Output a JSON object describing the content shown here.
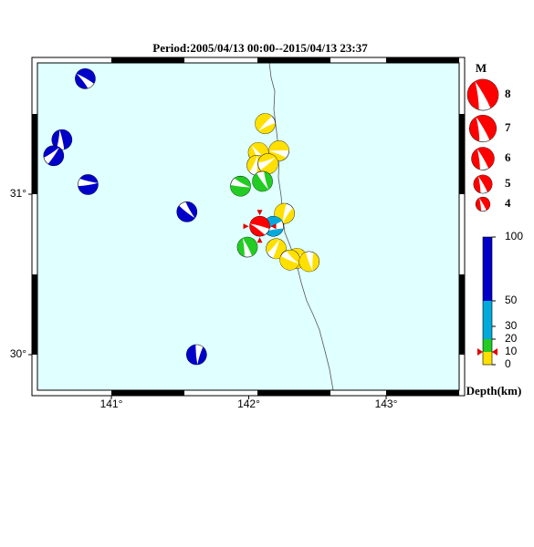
{
  "title": "Period:2005/04/13 00:00--2015/04/13 23:37",
  "map": {
    "lon_ticks": [
      {
        "value": 141,
        "label": "141°"
      },
      {
        "value": 142,
        "label": "142°"
      },
      {
        "value": 143,
        "label": "143°"
      }
    ],
    "lat_ticks": [
      {
        "value": 30,
        "label": "30°"
      },
      {
        "value": 31,
        "label": "31°"
      }
    ]
  },
  "events": [
    {
      "lon": 140.81,
      "lat": 31.72,
      "color": "#0000c8"
    },
    {
      "lon": 140.64,
      "lat": 31.34,
      "color": "#0000c8"
    },
    {
      "lon": 140.58,
      "lat": 31.24,
      "color": "#0000c8"
    },
    {
      "lon": 140.83,
      "lat": 31.06,
      "color": "#0000c8"
    },
    {
      "lon": 141.55,
      "lat": 30.89,
      "color": "#0000c8"
    },
    {
      "lon": 141.62,
      "lat": 30.0,
      "color": "#0000c8"
    },
    {
      "lon": 142.12,
      "lat": 31.44,
      "color": "#ffe000"
    },
    {
      "lon": 142.22,
      "lat": 31.27,
      "color": "#ffe000"
    },
    {
      "lon": 142.07,
      "lat": 31.26,
      "color": "#ffe000"
    },
    {
      "lon": 142.06,
      "lat": 31.18,
      "color": "#ffe000"
    },
    {
      "lon": 142.14,
      "lat": 31.19,
      "color": "#ffe000"
    },
    {
      "lon": 141.94,
      "lat": 31.05,
      "color": "#22cc22"
    },
    {
      "lon": 142.1,
      "lat": 31.08,
      "color": "#22cc22"
    },
    {
      "lon": 142.26,
      "lat": 30.88,
      "color": "#ffe000"
    },
    {
      "lon": 142.18,
      "lat": 30.8,
      "color": "#00aadd"
    },
    {
      "lon": 142.08,
      "lat": 30.8,
      "color": "#ff0000"
    },
    {
      "lon": 141.99,
      "lat": 30.67,
      "color": "#22cc22"
    },
    {
      "lon": 142.2,
      "lat": 30.66,
      "color": "#ffe000"
    },
    {
      "lon": 142.35,
      "lat": 30.6,
      "color": "#ffe000"
    },
    {
      "lon": 142.3,
      "lat": 30.59,
      "color": "#ffe000"
    },
    {
      "lon": 142.44,
      "lat": 30.58,
      "color": "#ffe000"
    }
  ],
  "magnitude_legend": {
    "title": "M",
    "items": [
      8,
      7,
      6,
      5,
      4
    ]
  },
  "depth_scale": {
    "title": "Depth(km)",
    "ticks": [
      100,
      50,
      30,
      20,
      10,
      0
    ]
  }
}
